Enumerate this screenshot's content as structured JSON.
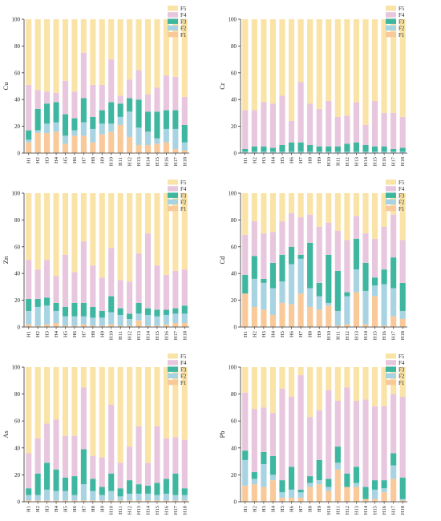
{
  "legend": [
    "F5",
    "F4",
    "F3",
    "F2",
    "F1"
  ],
  "categories": [
    "H1",
    "H2",
    "H3",
    "H4",
    "H5",
    "H6",
    "H7",
    "H8",
    "H9",
    "H10",
    "H11",
    "H12",
    "H13",
    "H14",
    "H15",
    "H16",
    "H17",
    "H18"
  ],
  "colors": {
    "F1": "#f9c99a",
    "F2": "#a8d3e2",
    "F3": "#3fb6a0",
    "F4": "#e8c6dd",
    "F5": "#fae3a6"
  },
  "chart_data": [
    {
      "type": "bar",
      "stacked": true,
      "title": "",
      "xlabel": "",
      "ylabel": "Cu",
      "ylim": [
        0,
        100
      ],
      "yticks": [
        0,
        20,
        40,
        60,
        80,
        100
      ],
      "series": [
        {
          "name": "F1",
          "values": [
            8,
            15,
            15,
            16,
            7,
            13,
            13,
            8,
            14,
            16,
            21,
            12,
            6,
            6,
            7,
            8,
            3,
            2
          ]
        },
        {
          "name": "F2",
          "values": [
            2,
            2,
            7,
            7,
            6,
            4,
            10,
            10,
            8,
            6,
            6,
            19,
            13,
            10,
            4,
            10,
            15,
            6
          ]
        },
        {
          "name": "F3",
          "values": [
            7,
            16,
            15,
            15,
            16,
            9,
            18,
            9,
            10,
            16,
            10,
            10,
            21,
            15,
            20,
            14,
            14,
            13
          ]
        },
        {
          "name": "F4",
          "values": [
            34,
            14,
            9,
            7,
            25,
            20,
            34,
            24,
            19,
            32,
            6,
            14,
            22,
            13,
            18,
            26,
            25,
            21
          ]
        },
        {
          "name": "F5",
          "values": [
            49,
            53,
            54,
            55,
            46,
            54,
            25,
            49,
            49,
            30,
            57,
            45,
            38,
            56,
            51,
            42,
            43,
            58
          ]
        }
      ]
    },
    {
      "type": "bar",
      "stacked": true,
      "title": "",
      "xlabel": "",
      "ylabel": "Cr",
      "ylim": [
        0,
        100
      ],
      "yticks": [
        0,
        20,
        40,
        60,
        80,
        100
      ],
      "series": [
        {
          "name": "F1",
          "values": [
            0,
            0,
            0,
            0,
            0,
            0,
            0,
            0,
            0,
            0,
            0,
            0,
            0,
            0,
            0,
            0,
            0,
            0
          ]
        },
        {
          "name": "F2",
          "values": [
            1,
            1,
            1,
            1,
            1,
            1,
            1,
            1,
            1,
            1,
            1,
            1,
            1,
            1,
            1,
            1,
            1,
            1
          ]
        },
        {
          "name": "F3",
          "values": [
            2,
            4,
            4,
            3,
            5,
            7,
            7,
            5,
            4,
            4,
            4,
            6,
            7,
            5,
            4,
            4,
            2,
            3
          ]
        },
        {
          "name": "F4",
          "values": [
            29,
            27,
            33,
            33,
            37,
            16,
            45,
            31,
            28,
            34,
            22,
            21,
            30,
            15,
            34,
            25,
            27,
            23
          ]
        },
        {
          "name": "F5",
          "values": [
            68,
            68,
            62,
            63,
            57,
            76,
            47,
            63,
            67,
            61,
            73,
            72,
            62,
            79,
            61,
            70,
            70,
            73
          ]
        }
      ]
    },
    {
      "type": "bar",
      "stacked": true,
      "title": "",
      "xlabel": "",
      "ylabel": "Zn",
      "ylim": [
        0,
        100
      ],
      "yticks": [
        0,
        20,
        40,
        60,
        80,
        100
      ],
      "series": [
        {
          "name": "F1",
          "values": [
            2,
            1,
            2,
            3,
            1,
            1,
            2,
            1,
            1,
            2,
            1,
            1,
            5,
            1,
            1,
            2,
            3,
            3
          ]
        },
        {
          "name": "F2",
          "values": [
            10,
            14,
            14,
            9,
            7,
            7,
            6,
            6,
            6,
            9,
            8,
            5,
            5,
            8,
            7,
            7,
            7,
            7
          ]
        },
        {
          "name": "F3",
          "values": [
            9,
            6,
            6,
            6,
            7,
            10,
            10,
            8,
            5,
            12,
            5,
            4,
            8,
            5,
            5,
            4,
            4,
            6
          ]
        },
        {
          "name": "F4",
          "values": [
            29,
            22,
            28,
            20,
            39,
            23,
            46,
            31,
            25,
            36,
            21,
            24,
            37,
            56,
            33,
            26,
            28,
            27
          ]
        },
        {
          "name": "F5",
          "values": [
            50,
            57,
            50,
            62,
            46,
            59,
            36,
            54,
            63,
            41,
            65,
            66,
            45,
            30,
            54,
            61,
            58,
            57
          ]
        }
      ]
    },
    {
      "type": "bar",
      "stacked": true,
      "title": "",
      "xlabel": "",
      "ylabel": "Cd",
      "ylim": [
        0,
        100
      ],
      "yticks": [
        0,
        20,
        40,
        60,
        80,
        100
      ],
      "series": [
        {
          "name": "F1",
          "values": [
            25,
            15,
            13,
            9,
            18,
            17,
            25,
            15,
            13,
            16,
            1,
            2,
            26,
            2,
            23,
            1,
            8,
            6
          ]
        },
        {
          "name": "F2",
          "values": [
            0,
            21,
            20,
            20,
            16,
            30,
            26,
            14,
            10,
            2,
            11,
            21,
            17,
            25,
            8,
            31,
            21,
            6
          ]
        },
        {
          "name": "F3",
          "values": [
            14,
            17,
            3,
            19,
            20,
            13,
            3,
            34,
            10,
            36,
            30,
            3,
            23,
            21,
            6,
            11,
            23,
            21
          ]
        },
        {
          "name": "F4",
          "values": [
            30,
            26,
            34,
            23,
            25,
            25,
            28,
            21,
            42,
            24,
            30,
            39,
            17,
            22,
            29,
            32,
            32,
            32
          ]
        },
        {
          "name": "F5",
          "values": [
            31,
            21,
            30,
            29,
            21,
            15,
            18,
            16,
            25,
            22,
            28,
            35,
            17,
            30,
            34,
            25,
            16,
            35
          ]
        }
      ]
    },
    {
      "type": "bar",
      "stacked": true,
      "title": "",
      "xlabel": "",
      "ylabel": "As",
      "ylim": [
        0,
        100
      ],
      "yticks": [
        0,
        20,
        40,
        60,
        80,
        100
      ],
      "series": [
        {
          "name": "F1",
          "values": [
            1,
            1,
            1,
            1,
            1,
            1,
            1,
            1,
            1,
            1,
            1,
            1,
            1,
            1,
            1,
            1,
            1,
            1
          ]
        },
        {
          "name": "F2",
          "values": [
            4,
            4,
            8,
            7,
            7,
            4,
            12,
            7,
            4,
            7,
            3,
            5,
            5,
            5,
            4,
            5,
            4,
            4
          ]
        },
        {
          "name": "F3",
          "values": [
            5,
            16,
            20,
            16,
            10,
            14,
            26,
            9,
            6,
            13,
            6,
            10,
            7,
            6,
            9,
            11,
            16,
            5
          ]
        },
        {
          "name": "F4",
          "values": [
            26,
            26,
            29,
            37,
            31,
            30,
            46,
            17,
            22,
            51,
            19,
            25,
            43,
            17,
            42,
            30,
            27,
            36
          ]
        },
        {
          "name": "F5",
          "values": [
            64,
            53,
            42,
            39,
            51,
            51,
            15,
            66,
            67,
            28,
            71,
            59,
            44,
            71,
            44,
            53,
            52,
            54
          ]
        }
      ]
    },
    {
      "type": "bar",
      "stacked": true,
      "title": "",
      "xlabel": "",
      "ylabel": "Pb",
      "ylim": [
        0,
        100
      ],
      "yticks": [
        0,
        20,
        40,
        60,
        80,
        100
      ],
      "series": [
        {
          "name": "F1",
          "values": [
            12,
            13,
            11,
            16,
            3,
            3,
            3,
            11,
            13,
            8,
            24,
            11,
            11,
            2,
            2,
            7,
            17,
            1
          ]
        },
        {
          "name": "F2",
          "values": [
            19,
            4,
            17,
            4,
            4,
            6,
            4,
            3,
            3,
            3,
            5,
            0,
            3,
            0,
            7,
            3,
            10,
            1
          ]
        },
        {
          "name": "F3",
          "values": [
            7,
            5,
            9,
            14,
            9,
            17,
            2,
            5,
            15,
            6,
            12,
            10,
            12,
            9,
            7,
            6,
            9,
            16
          ]
        },
        {
          "name": "F4",
          "values": [
            43,
            47,
            33,
            32,
            68,
            52,
            85,
            44,
            37,
            66,
            34,
            64,
            49,
            65,
            55,
            55,
            44,
            60
          ]
        },
        {
          "name": "F5",
          "values": [
            19,
            31,
            30,
            34,
            16,
            22,
            6,
            37,
            32,
            17,
            25,
            15,
            25,
            24,
            29,
            29,
            20,
            22
          ]
        }
      ]
    }
  ]
}
